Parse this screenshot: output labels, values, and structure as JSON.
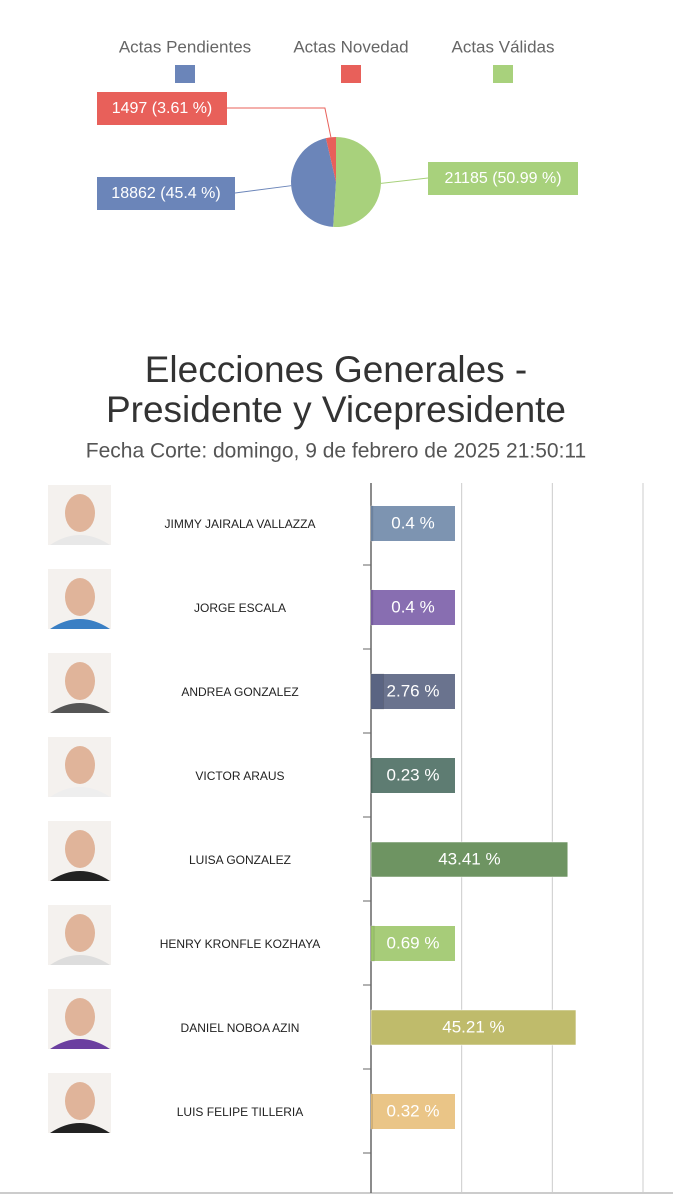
{
  "chart_data": [
    {
      "type": "pie",
      "categories": [
        "Actas Pendientes",
        "Actas Novedad",
        "Actas Válidas"
      ],
      "values": [
        18862,
        1497,
        21185
      ],
      "value_labels": [
        "18862 (45.4 %)",
        "1497 (3.61 %)",
        "21185 (50.99 %)"
      ],
      "colors": [
        "#6b85b9",
        "#e8605a",
        "#a8d17c"
      ],
      "legend": "top"
    },
    {
      "type": "hbar",
      "title": [
        "Elecciones Generales -",
        "Presidente y Vicepresidente"
      ],
      "subtitle": "Fecha Corte: domingo, 9 de febrero de 2025 21:50:11",
      "categories": [
        "JIMMY JAIRALA VALLAZZA",
        "JORGE ESCALA",
        "ANDREA GONZALEZ",
        "VICTOR ARAUS",
        "LUISA GONZALEZ",
        "HENRY KRONFLE KOZHAYA",
        "DANIEL NOBOA AZIN",
        "LUIS FELIPE TILLERIA"
      ],
      "values": [
        0.4,
        0.4,
        2.76,
        0.23,
        43.41,
        0.69,
        45.21,
        0.32
      ],
      "value_labels": [
        "0.4 %",
        "0.4 %",
        "2.76 %",
        "0.23 %",
        "43.41 %",
        "0.69 %",
        "45.21 %",
        "0.32 %"
      ],
      "colors": [
        "#6f88a8",
        "#7b5ea8",
        "#5a6482",
        "#4d6e63",
        "#6e9462",
        "#9dc66a",
        "#bfbb6b",
        "#e8bf7a"
      ],
      "xlim": [
        0,
        60
      ],
      "xticks": [
        0,
        20,
        40,
        60
      ],
      "grid": true
    }
  ]
}
